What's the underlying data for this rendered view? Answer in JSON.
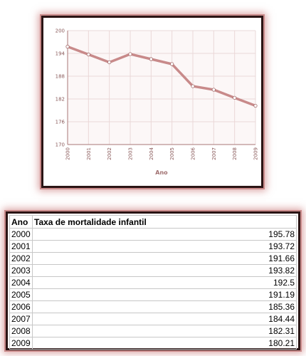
{
  "chart_data": {
    "type": "line",
    "x": [
      "2000",
      "2001",
      "2002",
      "2003",
      "2004",
      "2005",
      "2006",
      "2007",
      "2008",
      "2009"
    ],
    "values": [
      195.78,
      193.72,
      191.66,
      193.82,
      192.5,
      191.19,
      185.36,
      184.44,
      182.31,
      180.21
    ],
    "ylim": [
      170,
      200
    ],
    "yticks": [
      170,
      176,
      182,
      188,
      194,
      200
    ],
    "xlabel": "Ano",
    "ylabel": "",
    "grid": true,
    "colors": {
      "line": "#c88a8a",
      "plot_bg": "#fcf7f7",
      "grid": "#ead8d8",
      "axis": "#a97777"
    }
  },
  "table": {
    "headers": [
      "Ano",
      "Taxa de mortalidade infantil"
    ],
    "rows": [
      [
        "2000",
        "195.78"
      ],
      [
        "2001",
        "193.72"
      ],
      [
        "2002",
        "191.66"
      ],
      [
        "2003",
        "193.82"
      ],
      [
        "2004",
        "192.5"
      ],
      [
        "2005",
        "191.19"
      ],
      [
        "2006",
        "185.36"
      ],
      [
        "2007",
        "184.44"
      ],
      [
        "2008",
        "182.31"
      ],
      [
        "2009",
        "180.21"
      ]
    ]
  }
}
